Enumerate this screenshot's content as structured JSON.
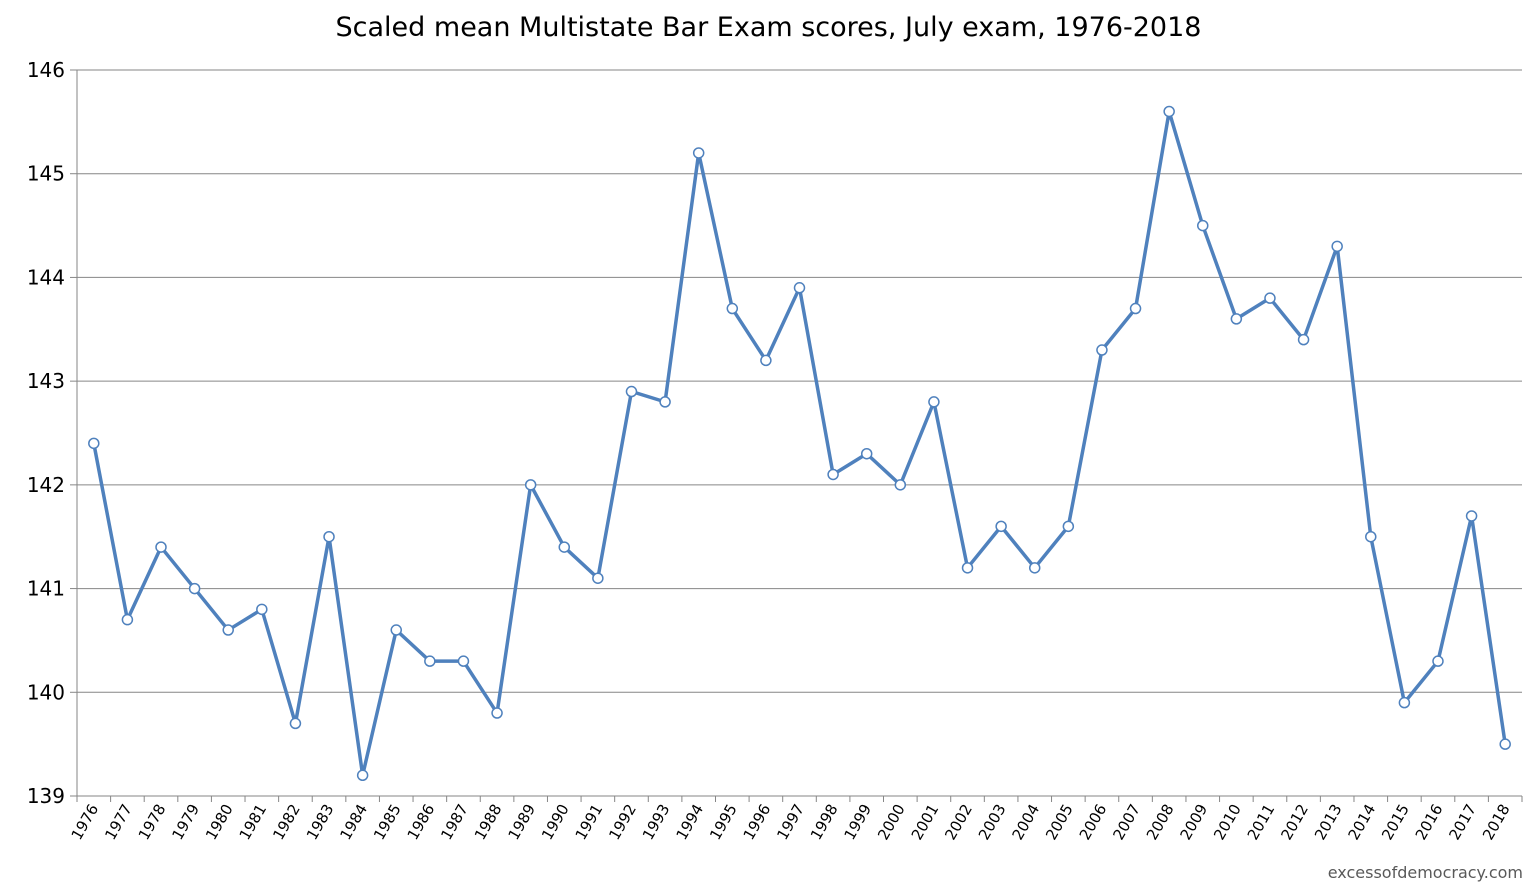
{
  "chart_data": {
    "type": "line",
    "title": "Scaled mean Multistate Bar Exam scores, July exam, 1976-2018",
    "xlabel": "",
    "ylabel": "",
    "ylim": [
      139,
      146
    ],
    "yticks": [
      139,
      140,
      141,
      142,
      143,
      144,
      145,
      146
    ],
    "grid": "horizontal",
    "categories": [
      "1976",
      "1977",
      "1978",
      "1979",
      "1980",
      "1981",
      "1982",
      "1983",
      "1984",
      "1985",
      "1986",
      "1987",
      "1988",
      "1989",
      "1990",
      "1991",
      "1992",
      "1993",
      "1994",
      "1995",
      "1996",
      "1997",
      "1998",
      "1999",
      "2000",
      "2001",
      "2002",
      "2003",
      "2004",
      "2005",
      "2006",
      "2007",
      "2008",
      "2009",
      "2010",
      "2011",
      "2012",
      "2013",
      "2014",
      "2015",
      "2016",
      "2017",
      "2018"
    ],
    "series": [
      {
        "values": [
          142.4,
          140.7,
          141.4,
          141.0,
          140.6,
          140.8,
          139.7,
          141.5,
          139.2,
          140.6,
          140.3,
          140.3,
          139.8,
          142.0,
          141.4,
          141.1,
          142.9,
          142.8,
          145.2,
          143.7,
          143.2,
          143.9,
          142.1,
          142.3,
          142.0,
          142.8,
          141.2,
          141.6,
          141.2,
          141.6,
          143.3,
          143.7,
          145.6,
          144.5,
          143.6,
          143.8,
          143.4,
          144.3,
          141.5,
          139.9,
          140.3,
          141.7,
          139.5
        ],
        "color": "#4f81bd"
      }
    ]
  },
  "watermark": "excessofdemocracy.com"
}
